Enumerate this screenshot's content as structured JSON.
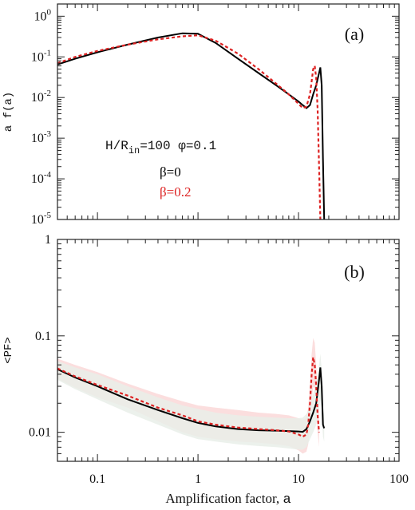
{
  "chart_data": [
    {
      "id": "panel_a",
      "type": "line",
      "panel_label": "(a)",
      "xscale": "log",
      "yscale": "log",
      "xlim": [
        0.04,
        100
      ],
      "ylim": [
        1e-05,
        2
      ],
      "ylabel": "a f(a)",
      "xtick_labels": [
        "0.1",
        "1",
        "10",
        "100"
      ],
      "ytick_labels": [
        {
          "base": "10",
          "exp": "0"
        },
        {
          "base": "10",
          "exp": "-1"
        },
        {
          "base": "10",
          "exp": "-2"
        },
        {
          "base": "10",
          "exp": "-3"
        },
        {
          "base": "10",
          "exp": "-4"
        },
        {
          "base": "10",
          "exp": "-5"
        }
      ],
      "annotation": {
        "main": "H/R",
        "sub": "in",
        "rest": "=100  φ=0.1"
      },
      "legend": {
        "placement": "middle-left",
        "entries": [
          "β=0",
          "β=0.2"
        ]
      },
      "series": [
        {
          "name": "β=0",
          "color": "#000000",
          "dash": "solid",
          "x": [
            0.04,
            0.06,
            0.1,
            0.2,
            0.4,
            0.7,
            1.0,
            1.5,
            2.5,
            4,
            6,
            8,
            10,
            11,
            12,
            13,
            14,
            15,
            16,
            16.5,
            17,
            17.5,
            18
          ],
          "y": [
            0.065,
            0.09,
            0.13,
            0.2,
            0.3,
            0.38,
            0.37,
            0.22,
            0.09,
            0.04,
            0.02,
            0.012,
            0.008,
            0.0065,
            0.0055,
            0.0065,
            0.012,
            0.02,
            0.04,
            0.055,
            0.02,
            0.0003,
            1e-05
          ]
        },
        {
          "name": "β=0.2",
          "color": "#dd2222",
          "dash": "dashed",
          "x": [
            0.04,
            0.06,
            0.1,
            0.2,
            0.4,
            0.7,
            1.0,
            1.5,
            2.5,
            4,
            6,
            8,
            10,
            11,
            12,
            13,
            13.5,
            14,
            14.5,
            15,
            15.5,
            16,
            16.5
          ],
          "y": [
            0.07,
            0.1,
            0.14,
            0.2,
            0.27,
            0.32,
            0.34,
            0.25,
            0.12,
            0.05,
            0.022,
            0.012,
            0.007,
            0.0055,
            0.006,
            0.012,
            0.025,
            0.05,
            0.06,
            0.03,
            0.005,
            0.0002,
            1e-05
          ]
        }
      ]
    },
    {
      "id": "panel_b",
      "type": "line",
      "panel_label": "(b)",
      "xscale": "log",
      "yscale": "log",
      "xlim": [
        0.04,
        100
      ],
      "ylim": [
        0.005,
        1
      ],
      "xlabel_main": "Amplification factor, ",
      "xlabel_var": "a",
      "ylabel": "<PF>",
      "xtick_labels": [
        "0.1",
        "1",
        "10",
        "100"
      ],
      "ytick_labels": [
        "1",
        "0.1",
        "0.01"
      ],
      "series": [
        {
          "name": "β=0",
          "color": "#000000",
          "dash": "solid",
          "band_color": "#e9eee9",
          "x": [
            0.04,
            0.06,
            0.1,
            0.2,
            0.4,
            0.7,
            1.0,
            1.5,
            2.5,
            4,
            6,
            8,
            10,
            11,
            12,
            13,
            14,
            15,
            16,
            16.5,
            17,
            17.5,
            18
          ],
          "y": [
            0.045,
            0.037,
            0.03,
            0.022,
            0.017,
            0.014,
            0.0125,
            0.0115,
            0.0108,
            0.0105,
            0.0104,
            0.0103,
            0.0102,
            0.0101,
            0.0108,
            0.013,
            0.016,
            0.02,
            0.035,
            0.047,
            0.03,
            0.012,
            0.011
          ],
          "band_low": [
            0.035,
            0.028,
            0.022,
            0.016,
            0.012,
            0.0095,
            0.0085,
            0.008,
            0.0075,
            0.0072,
            0.007,
            0.0068,
            0.0066,
            0.0066,
            0.007,
            0.0085,
            0.01,
            0.012,
            0.018,
            0.022,
            0.017,
            0.009,
            0.008
          ],
          "band_high": [
            0.055,
            0.047,
            0.04,
            0.03,
            0.023,
            0.019,
            0.0175,
            0.016,
            0.015,
            0.0145,
            0.0142,
            0.014,
            0.014,
            0.0142,
            0.0155,
            0.019,
            0.025,
            0.032,
            0.05,
            0.065,
            0.045,
            0.017,
            0.015
          ]
        },
        {
          "name": "β=0.2",
          "color": "#dd2222",
          "dash": "dashed",
          "band_color": "#fbdede",
          "x": [
            0.04,
            0.06,
            0.1,
            0.2,
            0.4,
            0.7,
            1.0,
            1.5,
            2.5,
            4,
            6,
            8,
            10,
            11,
            12,
            12.5,
            13,
            13.5,
            14,
            14.5,
            15,
            15.5,
            16
          ],
          "y": [
            0.046,
            0.038,
            0.031,
            0.024,
            0.018,
            0.015,
            0.013,
            0.012,
            0.0112,
            0.0108,
            0.0105,
            0.0102,
            0.0095,
            0.009,
            0.0095,
            0.012,
            0.02,
            0.04,
            0.06,
            0.05,
            0.03,
            0.015,
            0.01
          ],
          "band_low": [
            0.036,
            0.029,
            0.023,
            0.018,
            0.013,
            0.01,
            0.009,
            0.0085,
            0.008,
            0.0078,
            0.0075,
            0.0072,
            0.0065,
            0.006,
            0.0063,
            0.0075,
            0.011,
            0.02,
            0.03,
            0.028,
            0.018,
            0.01,
            0.007
          ],
          "band_high": [
            0.058,
            0.05,
            0.042,
            0.032,
            0.025,
            0.021,
            0.019,
            0.018,
            0.017,
            0.016,
            0.0155,
            0.015,
            0.014,
            0.0135,
            0.014,
            0.018,
            0.032,
            0.065,
            0.095,
            0.085,
            0.05,
            0.025,
            0.016
          ]
        }
      ]
    }
  ]
}
